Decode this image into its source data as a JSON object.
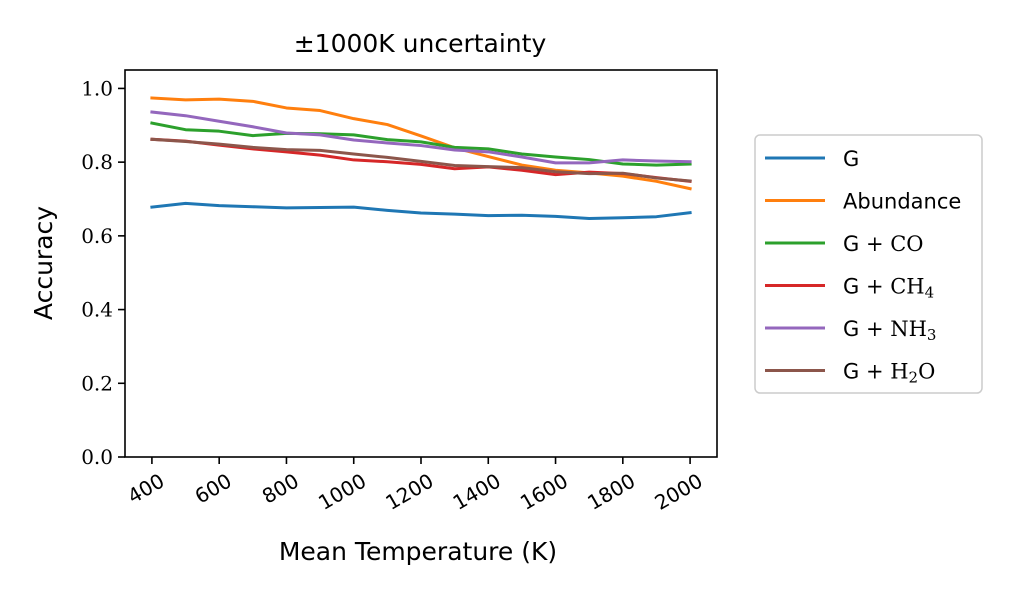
{
  "chart_data": {
    "type": "line",
    "title": "±1000K uncertainty",
    "xlabel": "Mean Temperature (K)",
    "ylabel": "Accuracy",
    "xlim": [
      320,
      2080
    ],
    "ylim": [
      0.0,
      1.05
    ],
    "xticks": [
      400,
      600,
      800,
      1000,
      1200,
      1400,
      1600,
      1800,
      2000
    ],
    "xtick_labels": [
      "400",
      "600",
      "800",
      "1000",
      "1200",
      "1400",
      "1600",
      "1800",
      "2000"
    ],
    "yticks": [
      0.0,
      0.2,
      0.4,
      0.6,
      0.8,
      1.0
    ],
    "ytick_labels": [
      "0.0",
      "0.2",
      "0.4",
      "0.6",
      "0.8",
      "1.0"
    ],
    "grid": false,
    "legend_position": "outside-right",
    "x": [
      400,
      500,
      600,
      700,
      800,
      900,
      1000,
      1100,
      1200,
      1300,
      1400,
      1500,
      1600,
      1700,
      1800,
      1900,
      2000
    ],
    "series": [
      {
        "name": "G",
        "name_parts": [
          {
            "text": "G",
            "math": false
          }
        ],
        "color": "#1f77b4",
        "values": [
          0.678,
          0.688,
          0.682,
          0.679,
          0.676,
          0.677,
          0.678,
          0.669,
          0.662,
          0.659,
          0.655,
          0.656,
          0.653,
          0.647,
          0.649,
          0.652,
          0.663
        ]
      },
      {
        "name": "Abundance",
        "name_parts": [
          {
            "text": "Abundance",
            "math": false
          }
        ],
        "color": "#ff7f0e",
        "values": [
          0.974,
          0.969,
          0.971,
          0.965,
          0.947,
          0.94,
          0.918,
          0.902,
          0.871,
          0.839,
          0.815,
          0.792,
          0.778,
          0.771,
          0.762,
          0.748,
          0.728
        ]
      },
      {
        "name": "G + CO",
        "name_parts": [
          {
            "text": "G ",
            "math": false
          },
          {
            "text": "+ CO",
            "math": true
          }
        ],
        "color": "#2ca02c",
        "values": [
          0.906,
          0.888,
          0.884,
          0.872,
          0.878,
          0.877,
          0.874,
          0.861,
          0.855,
          0.84,
          0.836,
          0.822,
          0.814,
          0.807,
          0.795,
          0.792,
          0.795
        ]
      },
      {
        "name": "G + CH4",
        "name_parts": [
          {
            "text": "G ",
            "math": false
          },
          {
            "text": "+ CH",
            "math": true
          },
          {
            "text": "4",
            "math": true,
            "sub": true
          }
        ],
        "color": "#d62728",
        "values": [
          0.862,
          0.857,
          0.846,
          0.836,
          0.828,
          0.819,
          0.806,
          0.801,
          0.794,
          0.782,
          0.787,
          0.778,
          0.766,
          0.773,
          0.769,
          0.758,
          0.748
        ]
      },
      {
        "name": "G + NH3",
        "name_parts": [
          {
            "text": "G ",
            "math": false
          },
          {
            "text": "+ NH",
            "math": true
          },
          {
            "text": "3",
            "math": true,
            "sub": true
          }
        ],
        "color": "#9467bd",
        "values": [
          0.936,
          0.926,
          0.911,
          0.896,
          0.879,
          0.874,
          0.86,
          0.852,
          0.845,
          0.833,
          0.828,
          0.814,
          0.798,
          0.798,
          0.806,
          0.803,
          0.801
        ]
      },
      {
        "name": "G + H2O",
        "name_parts": [
          {
            "text": "G ",
            "math": false
          },
          {
            "text": "+ H",
            "math": true
          },
          {
            "text": "2",
            "math": true,
            "sub": true
          },
          {
            "text": "O",
            "math": true
          }
        ],
        "color": "#8c564b",
        "values": [
          0.862,
          0.856,
          0.849,
          0.84,
          0.834,
          0.832,
          0.822,
          0.813,
          0.802,
          0.791,
          0.788,
          0.785,
          0.774,
          0.769,
          0.77,
          0.757,
          0.749
        ]
      }
    ]
  }
}
